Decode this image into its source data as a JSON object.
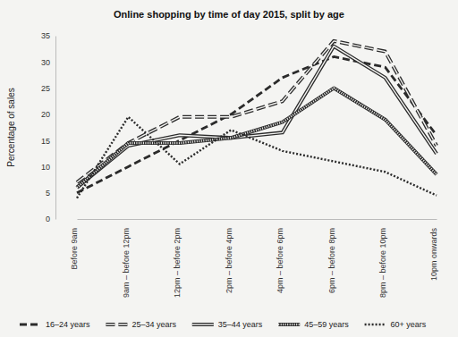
{
  "chart_data": {
    "type": "line",
    "title": "Online shopping by time of day 2015, split by age",
    "y_label": "Percentage of sales",
    "categories": [
      "Before 9am",
      "9am – before 12pm",
      "12pm – before 2pm",
      "2pm – before 4pm",
      "4pm – before 6pm",
      "6pm – before 8pm",
      "8pm – before 10pm",
      "10pm onwards"
    ],
    "series": [
      {
        "name": "16–24 years",
        "color": "#2b2b2b",
        "line_style": "dashed",
        "values": [
          5,
          10,
          15,
          20,
          27,
          31,
          29,
          16
        ]
      },
      {
        "name": "25–34 years",
        "color": "#2b2b2b",
        "line_style": "double-dashed",
        "values": [
          7,
          14.5,
          19.5,
          19.5,
          22.5,
          34,
          32,
          14
        ]
      },
      {
        "name": "35–44 years",
        "color": "#2b2b2b",
        "line_style": "double",
        "values": [
          6,
          14,
          16,
          15.5,
          16.5,
          33,
          27,
          12.5
        ]
      },
      {
        "name": "45–59 years",
        "color": "#2b2b2b",
        "line_style": "hatched",
        "values": [
          6,
          14.5,
          14.5,
          15.5,
          18.5,
          25,
          19,
          8.5
        ]
      },
      {
        "name": "60+ years",
        "color": "#2b2b2b",
        "line_style": "dotted",
        "values": [
          4,
          19.5,
          10.5,
          17,
          13,
          11,
          9,
          4.5
        ]
      }
    ],
    "ylim": [
      0,
      35
    ],
    "yticks": [
      0,
      5,
      10,
      15,
      20,
      25,
      30,
      35
    ],
    "grid": false,
    "legend": "bottom"
  }
}
